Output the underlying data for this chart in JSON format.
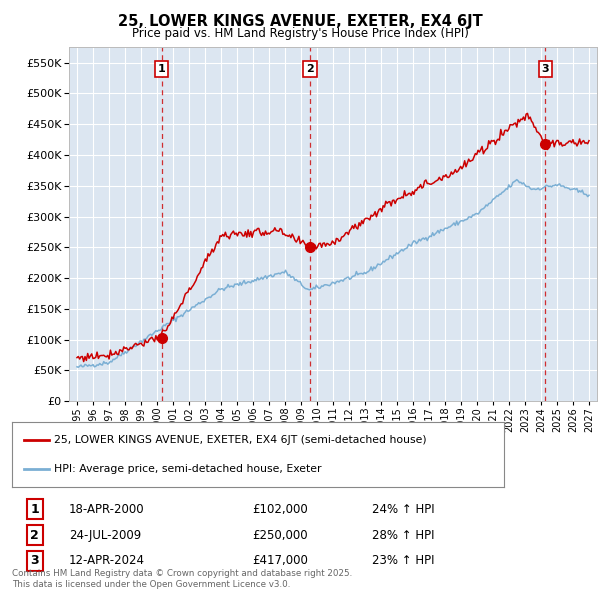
{
  "title": "25, LOWER KINGS AVENUE, EXETER, EX4 6JT",
  "subtitle": "Price paid vs. HM Land Registry's House Price Index (HPI)",
  "background_color": "#ffffff",
  "plot_bg_color": "#dce6f1",
  "grid_color": "#ffffff",
  "red_color": "#cc0000",
  "blue_color": "#7bafd4",
  "purchase_dates": [
    2000.3,
    2009.56,
    2024.28
  ],
  "purchase_prices": [
    102000,
    250000,
    417000
  ],
  "purchase_labels": [
    "1",
    "2",
    "3"
  ],
  "legend_entries": [
    "25, LOWER KINGS AVENUE, EXETER, EX4 6JT (semi-detached house)",
    "HPI: Average price, semi-detached house, Exeter"
  ],
  "table_rows": [
    [
      "1",
      "18-APR-2000",
      "£102,000",
      "24% ↑ HPI"
    ],
    [
      "2",
      "24-JUL-2009",
      "£250,000",
      "28% ↑ HPI"
    ],
    [
      "3",
      "12-APR-2024",
      "£417,000",
      "23% ↑ HPI"
    ]
  ],
  "footnote": "Contains HM Land Registry data © Crown copyright and database right 2025.\nThis data is licensed under the Open Government Licence v3.0.",
  "ylim": [
    0,
    575000
  ],
  "yticks": [
    0,
    50000,
    100000,
    150000,
    200000,
    250000,
    300000,
    350000,
    400000,
    450000,
    500000,
    550000
  ],
  "xlim": [
    1994.5,
    2027.5
  ],
  "xticks": [
    1995,
    1996,
    1997,
    1998,
    1999,
    2000,
    2001,
    2002,
    2003,
    2004,
    2005,
    2006,
    2007,
    2008,
    2009,
    2010,
    2011,
    2012,
    2013,
    2014,
    2015,
    2016,
    2017,
    2018,
    2019,
    2020,
    2021,
    2022,
    2023,
    2024,
    2025,
    2026,
    2027
  ]
}
